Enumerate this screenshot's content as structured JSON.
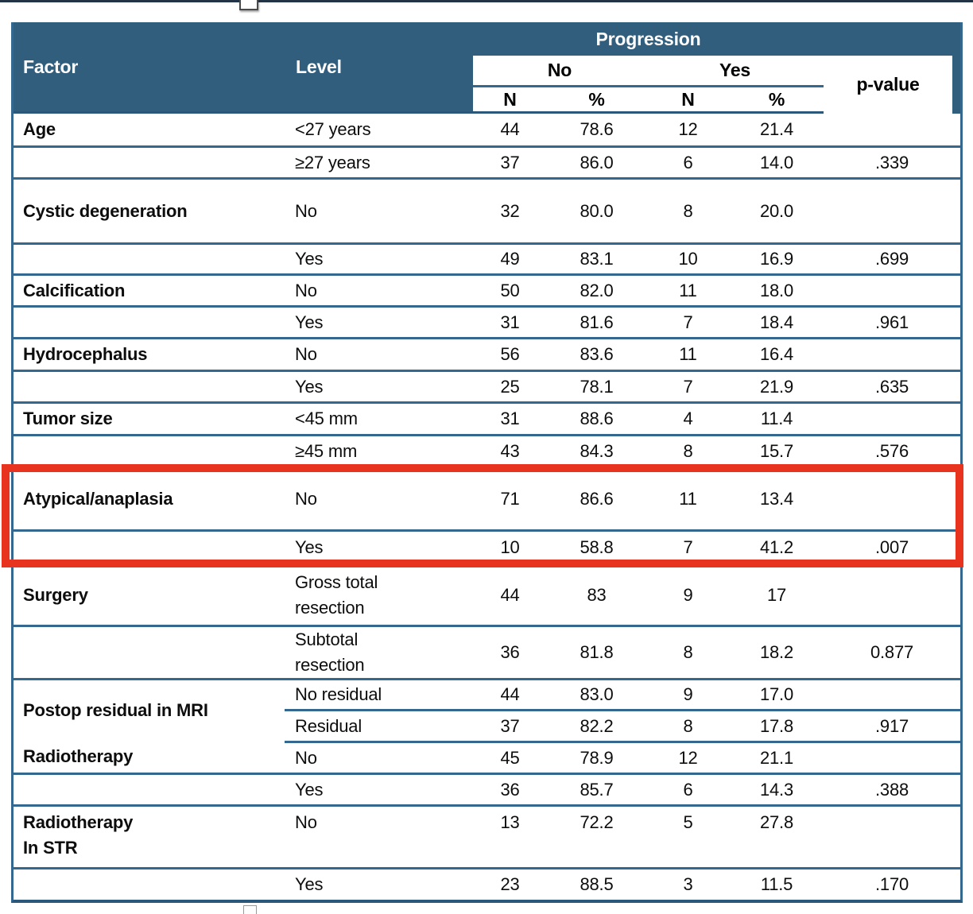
{
  "colors": {
    "header_bg": "#315E7D",
    "line": "#35688E",
    "line_strong": "#2B587A",
    "top_bar": "#243447",
    "red": "#E8331F",
    "text": "#0d0d0d"
  },
  "header": {
    "factor": "Factor",
    "level": "Level",
    "progression": "Progression",
    "no": "No",
    "yes": "Yes",
    "n_no": "N",
    "pct_no": "%",
    "n_yes": "N",
    "pct_yes": "%",
    "p_value": "p-value"
  },
  "rows": [
    {
      "factor": "Age",
      "level": "<27 years",
      "no_n": "44",
      "no_pct": "78.6",
      "yes_n": "12",
      "yes_pct": "21.4",
      "p": ""
    },
    {
      "factor": "",
      "level": "≥27 years",
      "no_n": "37",
      "no_pct": "86.0",
      "yes_n": "6",
      "yes_pct": "14.0",
      "p": ".339"
    },
    {
      "factor": "Cystic degeneration",
      "level": "No",
      "no_n": "32",
      "no_pct": "80.0",
      "yes_n": "8",
      "yes_pct": "20.0",
      "p": ""
    },
    {
      "factor": "",
      "level": "Yes",
      "no_n": "49",
      "no_pct": "83.1",
      "yes_n": "10",
      "yes_pct": "16.9",
      "p": ".699"
    },
    {
      "factor": "Calcification",
      "level": "No",
      "no_n": "50",
      "no_pct": "82.0",
      "yes_n": "11",
      "yes_pct": "18.0",
      "p": ""
    },
    {
      "factor": "",
      "level": "Yes",
      "no_n": "31",
      "no_pct": "81.6",
      "yes_n": "7",
      "yes_pct": "18.4",
      "p": ".961"
    },
    {
      "factor": "Hydrocephalus",
      "level": "No",
      "no_n": "56",
      "no_pct": "83.6",
      "yes_n": "11",
      "yes_pct": "16.4",
      "p": ""
    },
    {
      "factor": "",
      "level": "Yes",
      "no_n": "25",
      "no_pct": "78.1",
      "yes_n": "7",
      "yes_pct": "21.9",
      "p": ".635"
    },
    {
      "factor": "Tumor size",
      "level": "<45 mm",
      "no_n": "31",
      "no_pct": "88.6",
      "yes_n": "4",
      "yes_pct": "11.4",
      "p": ""
    },
    {
      "factor": "",
      "level": "≥45 mm",
      "no_n": "43",
      "no_pct": "84.3",
      "yes_n": "8",
      "yes_pct": "15.7",
      "p": ".576"
    },
    {
      "factor": "Atypical/anaplasia",
      "level": "No",
      "no_n": "71",
      "no_pct": "86.6",
      "yes_n": "11",
      "yes_pct": "13.4",
      "p": ""
    },
    {
      "factor": "",
      "level": "Yes",
      "no_n": "10",
      "no_pct": "58.8",
      "yes_n": "7",
      "yes_pct": "41.2",
      "p": ".007"
    },
    {
      "factor": "Surgery",
      "level": "Gross total\nresection",
      "no_n": "44",
      "no_pct": "83",
      "yes_n": "9",
      "yes_pct": "17",
      "p": ""
    },
    {
      "factor": "",
      "level": "Subtotal\nresection",
      "no_n": "36",
      "no_pct": "81.8",
      "yes_n": "8",
      "yes_pct": "18.2",
      "p": "0.877"
    },
    {
      "factor": "Postop residual in MRI",
      "level": "No residual",
      "no_n": "44",
      "no_pct": "83.0",
      "yes_n": "9",
      "yes_pct": "17.0",
      "p": ""
    },
    {
      "factor": null,
      "level": "Residual",
      "no_n": "37",
      "no_pct": "82.2",
      "yes_n": "8",
      "yes_pct": "17.8",
      "p": ".917"
    },
    {
      "factor": "Radiotherapy",
      "level": "No",
      "no_n": "45",
      "no_pct": "78.9",
      "yes_n": "12",
      "yes_pct": "21.1",
      "p": ""
    },
    {
      "factor": "",
      "level": "Yes",
      "no_n": "36",
      "no_pct": "85.7",
      "yes_n": "6",
      "yes_pct": "14.3",
      "p": ".388"
    },
    {
      "factor": "Radiotherapy\nIn STR",
      "level": "No",
      "no_n": "13",
      "no_pct": "72.2",
      "yes_n": "5",
      "yes_pct": "27.8",
      "p": ""
    },
    {
      "factor": "",
      "level": "Yes",
      "no_n": "23",
      "no_pct": "88.5",
      "yes_n": "3",
      "yes_pct": "11.5",
      "p": ".170"
    }
  ],
  "annotation": {
    "highlighted_factor": "Atypical/anaplasia",
    "highlighted_p_value": ".007",
    "highlight_color": "#E8331F"
  }
}
